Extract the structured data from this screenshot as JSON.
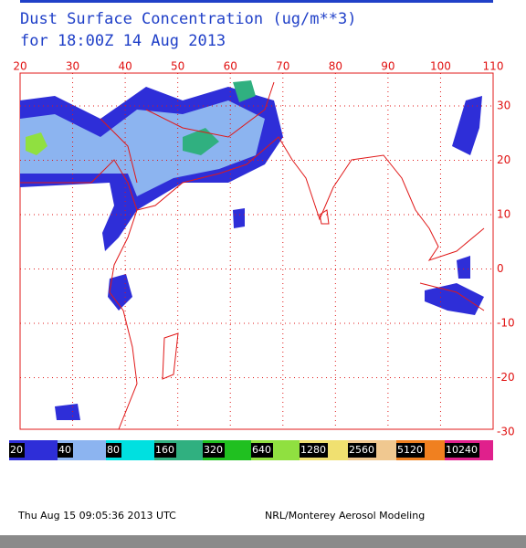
{
  "title": "Dust Surface Concentration (ug/m**3)",
  "subtitle": "for 18:00Z 14 Aug 2013",
  "map": {
    "lon_labels": [
      20,
      30,
      40,
      50,
      60,
      70,
      80,
      90,
      100,
      110
    ],
    "lat_labels": [
      30,
      20,
      10,
      0,
      -10,
      -20,
      -30
    ]
  },
  "legend": {
    "labels": [
      20,
      40,
      80,
      160,
      320,
      640,
      1280,
      2560,
      5120,
      10240
    ],
    "colors": [
      "#2e2ed8",
      "#8cb4f0",
      "#00e0e0",
      "#30b080",
      "#20c020",
      "#90e040",
      "#f0e070",
      "#f0c890",
      "#f08020",
      "#e0208c"
    ]
  },
  "footer": {
    "timestamp": "Thu Aug 15 09:05:36 2013 UTC",
    "credit": "NRL/Monterey Aerosol Modeling"
  }
}
